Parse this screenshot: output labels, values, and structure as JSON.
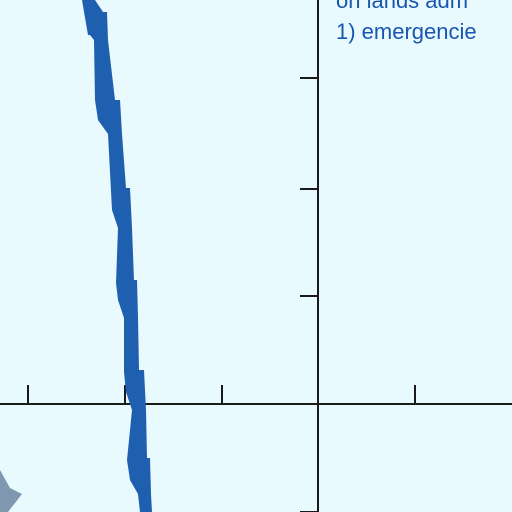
{
  "chart_data": {
    "type": "line",
    "title": "",
    "xlabel": "",
    "ylabel": "",
    "series_color": "#1f5fb0",
    "axis_color": "#1a1a1a",
    "annotation_color": "#1a56b0",
    "annotations": [
      "on lands adm",
      "1) emergencie"
    ],
    "grid": false
  }
}
